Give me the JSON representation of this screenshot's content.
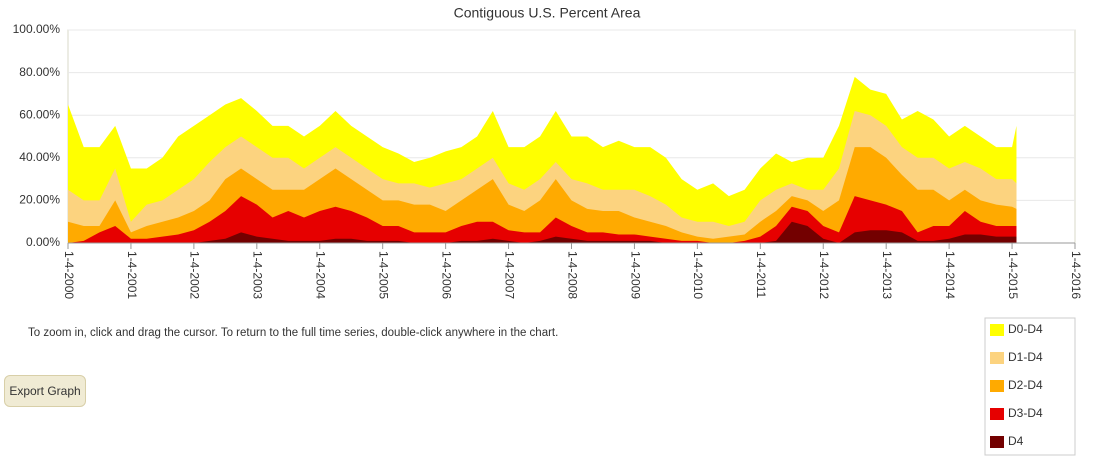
{
  "chart_data": {
    "type": "area",
    "title": "Contiguous U.S. Percent Area",
    "note": "To zoom in, click and drag the cursor. To return to the full time series, double-click anywhere in the chart.",
    "button": "Export Graph",
    "x": [
      2000.0,
      2000.25,
      2000.5,
      2000.75,
      2001.0,
      2001.25,
      2001.5,
      2001.75,
      2002.0,
      2002.25,
      2002.5,
      2002.75,
      2003.0,
      2003.25,
      2003.5,
      2003.75,
      2004.0,
      2004.25,
      2004.5,
      2004.75,
      2005.0,
      2005.25,
      2005.5,
      2005.75,
      2006.0,
      2006.25,
      2006.5,
      2006.75,
      2007.0,
      2007.25,
      2007.5,
      2007.75,
      2008.0,
      2008.25,
      2008.5,
      2008.75,
      2009.0,
      2009.25,
      2009.5,
      2009.75,
      2010.0,
      2010.25,
      2010.5,
      2010.75,
      2011.0,
      2011.25,
      2011.5,
      2011.75,
      2012.0,
      2012.25,
      2012.5,
      2012.75,
      2013.0,
      2013.25,
      2013.5,
      2013.75,
      2014.0,
      2014.25,
      2014.5,
      2014.75,
      2015.0,
      2015.07
    ],
    "series": [
      {
        "name": "D0-D4",
        "color": "#ffff00",
        "values": [
          65,
          45,
          45,
          55,
          35,
          35,
          40,
          50,
          55,
          60,
          65,
          68,
          62,
          55,
          55,
          50,
          55,
          62,
          55,
          50,
          45,
          42,
          38,
          40,
          43,
          45,
          50,
          62,
          45,
          45,
          50,
          62,
          50,
          50,
          45,
          48,
          45,
          45,
          40,
          30,
          25,
          28,
          22,
          25,
          35,
          42,
          38,
          40,
          40,
          55,
          78,
          72,
          70,
          58,
          62,
          58,
          50,
          55,
          50,
          45,
          45,
          55
        ]
      },
      {
        "name": "D1-D4",
        "color": "#fcd37f",
        "values": [
          25,
          20,
          20,
          35,
          10,
          18,
          20,
          25,
          30,
          38,
          45,
          50,
          45,
          40,
          40,
          35,
          40,
          45,
          40,
          35,
          30,
          28,
          28,
          26,
          28,
          30,
          35,
          40,
          28,
          25,
          30,
          38,
          30,
          28,
          25,
          25,
          25,
          22,
          18,
          12,
          10,
          10,
          8,
          10,
          20,
          25,
          28,
          25,
          25,
          35,
          62,
          60,
          55,
          45,
          40,
          40,
          35,
          38,
          35,
          30,
          30,
          28
        ]
      },
      {
        "name": "D2-D4",
        "color": "#ffaa00",
        "values": [
          10,
          8,
          8,
          20,
          5,
          8,
          10,
          12,
          15,
          20,
          30,
          35,
          30,
          25,
          25,
          25,
          30,
          35,
          30,
          25,
          20,
          20,
          18,
          18,
          15,
          20,
          25,
          30,
          18,
          15,
          20,
          30,
          20,
          16,
          15,
          15,
          12,
          10,
          8,
          5,
          3,
          2,
          3,
          4,
          10,
          15,
          22,
          20,
          15,
          20,
          45,
          45,
          40,
          32,
          25,
          25,
          20,
          25,
          20,
          18,
          17,
          16
        ]
      },
      {
        "name": "D3-D4",
        "color": "#e60000",
        "values": [
          0,
          1,
          5,
          8,
          2,
          2,
          3,
          4,
          6,
          10,
          15,
          22,
          18,
          12,
          15,
          12,
          15,
          17,
          15,
          12,
          8,
          8,
          5,
          5,
          5,
          8,
          10,
          10,
          6,
          5,
          5,
          12,
          8,
          5,
          5,
          4,
          4,
          3,
          2,
          1,
          1,
          0,
          0,
          1,
          3,
          8,
          17,
          15,
          8,
          5,
          22,
          20,
          18,
          15,
          5,
          8,
          8,
          15,
          10,
          8,
          8,
          8
        ]
      },
      {
        "name": "D4",
        "color": "#730000",
        "values": [
          0,
          0,
          0,
          0,
          0,
          0,
          0,
          0,
          0,
          1,
          2,
          5,
          3,
          2,
          1,
          1,
          1,
          2,
          2,
          1,
          1,
          1,
          0,
          0,
          0,
          1,
          1,
          2,
          1,
          0,
          1,
          3,
          2,
          1,
          1,
          1,
          1,
          1,
          0,
          0,
          0,
          0,
          0,
          0,
          0,
          1,
          10,
          8,
          2,
          0,
          5,
          6,
          6,
          5,
          1,
          1,
          2,
          4,
          4,
          3,
          3,
          3
        ]
      }
    ],
    "xlim": [
      2000.0,
      2016.0
    ],
    "xticks": [
      {
        "value": 2000.0,
        "label": "1-4-2000"
      },
      {
        "value": 2001.0,
        "label": "1-4-2001"
      },
      {
        "value": 2002.0,
        "label": "1-4-2002"
      },
      {
        "value": 2003.0,
        "label": "1-4-2003"
      },
      {
        "value": 2004.0,
        "label": "1-4-2004"
      },
      {
        "value": 2005.0,
        "label": "1-4-2005"
      },
      {
        "value": 2006.0,
        "label": "1-4-2006"
      },
      {
        "value": 2007.0,
        "label": "1-4-2007"
      },
      {
        "value": 2008.0,
        "label": "1-4-2008"
      },
      {
        "value": 2009.0,
        "label": "1-4-2009"
      },
      {
        "value": 2010.0,
        "label": "1-4-2010"
      },
      {
        "value": 2011.0,
        "label": "1-4-2011"
      },
      {
        "value": 2012.0,
        "label": "1-4-2012"
      },
      {
        "value": 2013.0,
        "label": "1-4-2013"
      },
      {
        "value": 2014.0,
        "label": "1-4-2014"
      },
      {
        "value": 2015.0,
        "label": "1-4-2015"
      },
      {
        "value": 2016.0,
        "label": "1-4-2016"
      }
    ],
    "ylim": [
      0,
      100
    ],
    "yticks": [
      {
        "value": 0,
        "label": "0.00%"
      },
      {
        "value": 20,
        "label": "20.00%"
      },
      {
        "value": 40,
        "label": "40.00%"
      },
      {
        "value": 60,
        "label": "60.00%"
      },
      {
        "value": 80,
        "label": "80.00%"
      },
      {
        "value": 100,
        "label": "100.00%"
      }
    ],
    "grid": true
  }
}
